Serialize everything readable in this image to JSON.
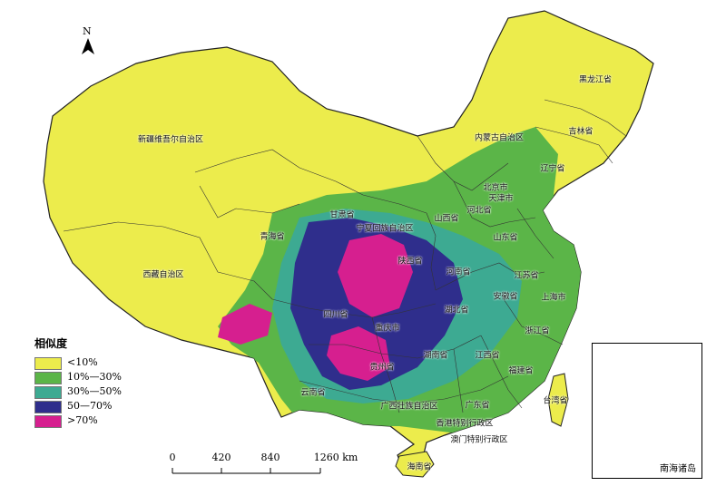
{
  "north": {
    "letter": "N"
  },
  "legend": {
    "title": "相似度",
    "items": [
      {
        "label": "<10%",
        "color": "#ecec4c"
      },
      {
        "label": "10%—30%",
        "color": "#5bb548"
      },
      {
        "label": "30%—50%",
        "color": "#3daa92"
      },
      {
        "label": "50—70%",
        "color": "#2f2e8c"
      },
      {
        "label": ">70%",
        "color": "#d61f8f"
      }
    ]
  },
  "scale": {
    "ticks": [
      "0",
      "420",
      "840",
      "1260 km"
    ]
  },
  "inset": {
    "label": "南海诸岛"
  },
  "provinces": [
    "新疆维吾尔自治区",
    "西藏自治区",
    "青海省",
    "甘肃省",
    "内蒙古自治区",
    "黑龙江省",
    "吉林省",
    "辽宁省",
    "北京市",
    "天津市",
    "河北省",
    "山西省",
    "宁夏回族自治区",
    "陕西省",
    "山东省",
    "河南省",
    "江苏省",
    "上海市",
    "安徽省",
    "湖北省",
    "四川省",
    "重庆市",
    "浙江省",
    "湖南省",
    "江西省",
    "贵州省",
    "福建省",
    "台湾省",
    "云南省",
    "广西壮族自治区",
    "广东省",
    "香港特别行政区",
    "澳门特别行政区",
    "海南省"
  ]
}
